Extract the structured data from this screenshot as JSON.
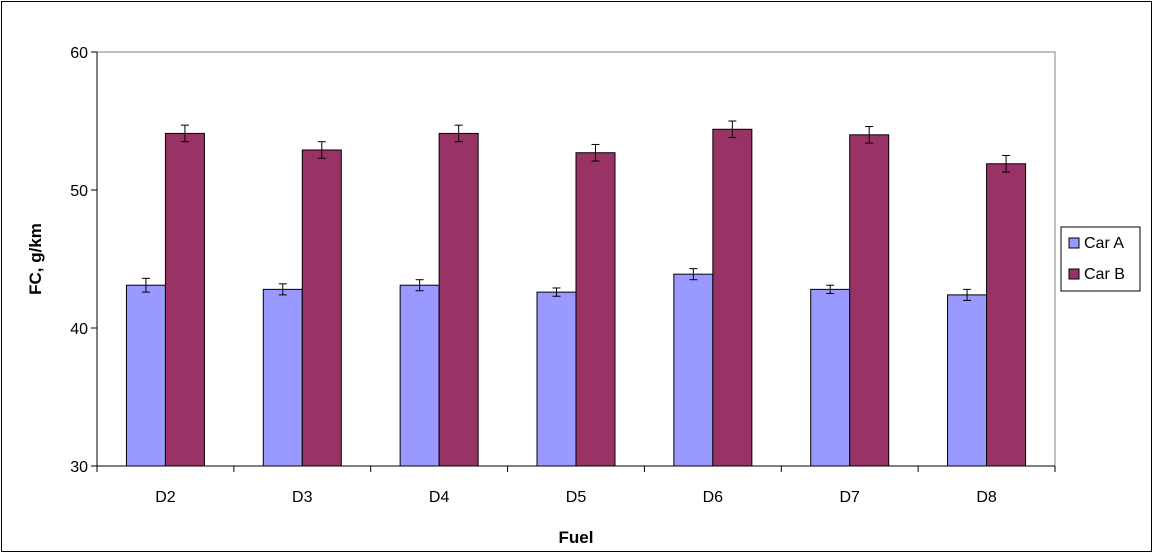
{
  "chart_data": {
    "type": "bar",
    "xlabel": "Fuel",
    "ylabel": "FC, g/km",
    "ylim": [
      30,
      60
    ],
    "yticks": [
      30,
      40,
      50,
      60
    ],
    "grid": false,
    "legend_position": "right",
    "categories": [
      "D2",
      "D3",
      "D4",
      "D5",
      "D6",
      "D7",
      "D8"
    ],
    "series": [
      {
        "name": "Car A",
        "color": "#9999ff",
        "values": [
          43.1,
          42.8,
          43.1,
          42.6,
          43.9,
          42.8,
          42.4
        ],
        "error": [
          0.5,
          0.4,
          0.4,
          0.3,
          0.4,
          0.3,
          0.4
        ]
      },
      {
        "name": "Car B",
        "color": "#993366",
        "values": [
          54.1,
          52.9,
          54.1,
          52.7,
          54.4,
          54.0,
          51.9
        ],
        "error": [
          0.6,
          0.6,
          0.6,
          0.6,
          0.6,
          0.6,
          0.6
        ]
      }
    ]
  }
}
